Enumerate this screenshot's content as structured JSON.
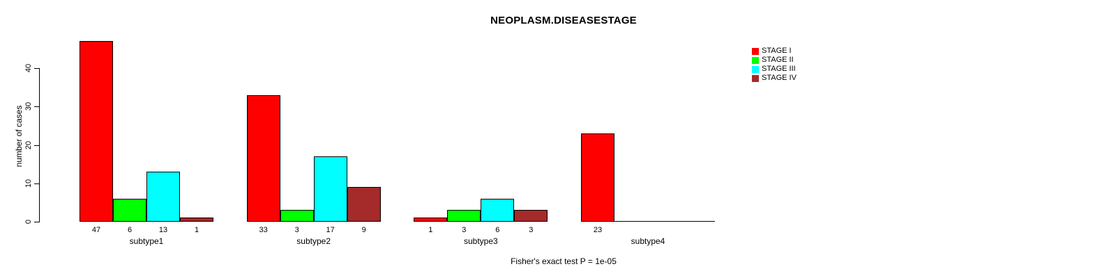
{
  "title": "NEOPLASM.DISEASESTAGE",
  "footer": "Fisher's exact test P = 1e-05",
  "chart_data": {
    "type": "bar",
    "title": "NEOPLASM.DISEASESTAGE",
    "ylabel": "number of cases",
    "xlabel": "",
    "yticks": [
      0,
      10,
      20,
      30,
      40
    ],
    "ylim": [
      0,
      47
    ],
    "grid": false,
    "legend_position": "top-right",
    "categories": [
      "subtype1",
      "subtype2",
      "subtype3",
      "subtype4"
    ],
    "series": [
      {
        "name": "STAGE I",
        "color": "#FF0000",
        "values": [
          47,
          33,
          1,
          23
        ]
      },
      {
        "name": "STAGE II",
        "color": "#00FF00",
        "values": [
          6,
          3,
          3,
          0
        ]
      },
      {
        "name": "STAGE III",
        "color": "#00FFFF",
        "values": [
          13,
          17,
          6,
          0
        ]
      },
      {
        "name": "STAGE IV",
        "color": "#A52A2A",
        "values": [
          1,
          9,
          3,
          0
        ]
      }
    ],
    "bar_value_labels": {
      "subtype1": [
        47,
        6,
        13,
        1
      ],
      "subtype2": [
        33,
        3,
        17,
        9
      ],
      "subtype3": [
        1,
        3,
        6,
        3
      ],
      "subtype4": [
        23,
        null,
        null,
        null
      ]
    },
    "annotation": "Fisher's exact test P = 1e-05"
  }
}
